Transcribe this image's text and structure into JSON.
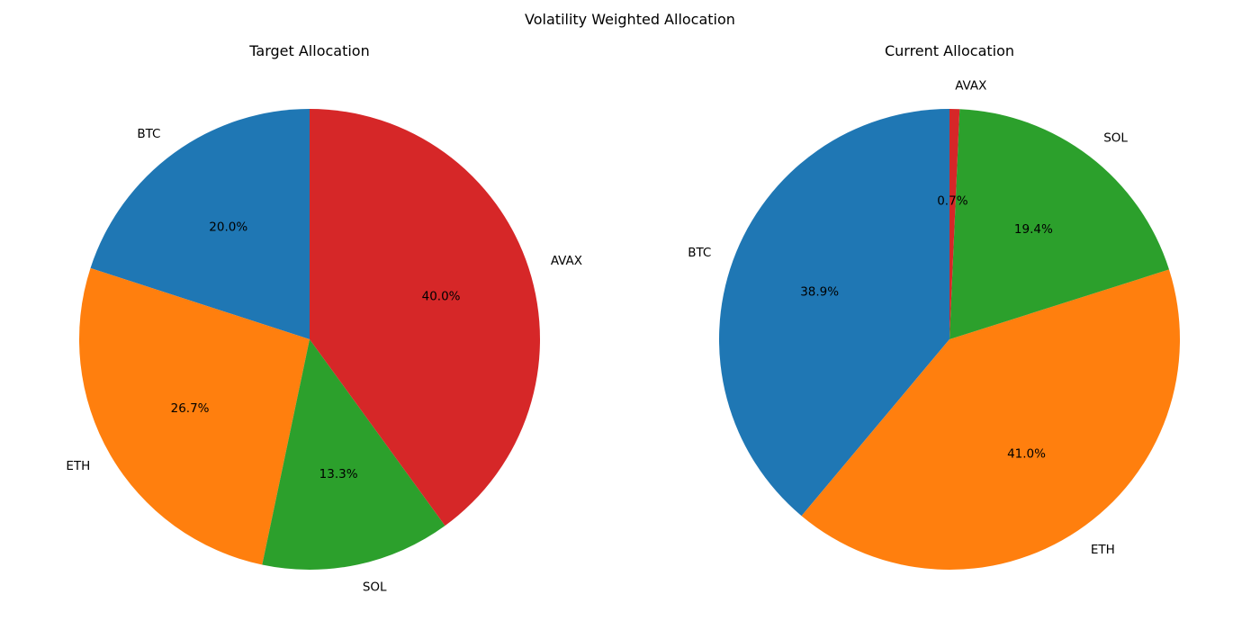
{
  "figure": {
    "title": "Volatility Weighted Allocation"
  },
  "chart_data": [
    {
      "type": "pie",
      "title": "Target Allocation",
      "start_angle_deg": 90,
      "direction": "counterclockwise",
      "slices": [
        {
          "label": "BTC",
          "value": 20.0,
          "pct_label": "20.0%",
          "color": "#1f77b4"
        },
        {
          "label": "ETH",
          "value": 26.7,
          "pct_label": "26.7%",
          "color": "#ff7f0e"
        },
        {
          "label": "SOL",
          "value": 13.3,
          "pct_label": "13.3%",
          "color": "#2ca02c"
        },
        {
          "label": "AVAX",
          "value": 40.0,
          "pct_label": "40.0%",
          "color": "#d62728"
        }
      ]
    },
    {
      "type": "pie",
      "title": "Current Allocation",
      "start_angle_deg": 90,
      "direction": "counterclockwise",
      "slices": [
        {
          "label": "BTC",
          "value": 38.9,
          "pct_label": "38.9%",
          "color": "#1f77b4"
        },
        {
          "label": "ETH",
          "value": 41.0,
          "pct_label": "41.0%",
          "color": "#ff7f0e"
        },
        {
          "label": "SOL",
          "value": 19.4,
          "pct_label": "19.4%",
          "color": "#2ca02c"
        },
        {
          "label": "AVAX",
          "value": 0.7,
          "pct_label": "0.7%",
          "color": "#d62728"
        }
      ]
    }
  ]
}
